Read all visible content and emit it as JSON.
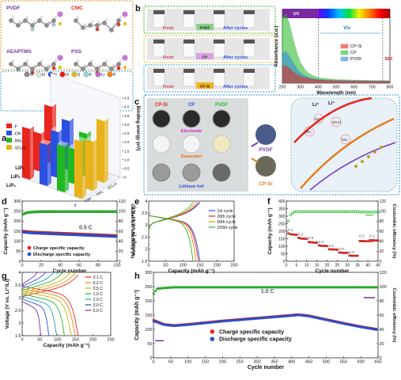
{
  "panel_letters": [
    "a",
    "b",
    "c",
    "d",
    "e",
    "f",
    "g",
    "h"
  ],
  "colors": {
    "red": "#e8251c",
    "blue": "#2b4fe0",
    "green": "#22b822",
    "navy": "#2b2b6e",
    "purple": "#7a2aa0",
    "orange": "#f08a16",
    "teal": "#1aa0b0"
  },
  "panel_a": {
    "molecules": [
      "PVDF",
      "CMC",
      "AEAPTMS",
      "PSS"
    ],
    "atom_legend": [
      "C",
      "H",
      "N",
      "O",
      "S",
      "F",
      "Li",
      "P"
    ],
    "bar3d": {
      "zlabel": "Binding energy (eV)",
      "zticks": [
        "0",
        "0.5",
        "1.0",
        "1.5",
        "2.0",
        "2.5",
        "3.0",
        "3.5",
        "4.0",
        "4.5"
      ],
      "legend": [
        "-F",
        "-OH",
        "-NH₂",
        "-SO₃H"
      ],
      "rows": [
        "LiP₆",
        "LiP₅",
        "LiP₃"
      ],
      "cols": [
        "-F",
        "-OH",
        "-NH₂",
        "-SO₃H"
      ]
    }
  },
  "panel_b": {
    "photo_labels": {
      "left": "Fresh",
      "right": "After cycles"
    },
    "row_tags": [
      "PVDF",
      "CP",
      "CP-Si"
    ],
    "chart_data": {
      "type": "line",
      "xlabel": "Wavelength (nm)",
      "ylabel": "Absorbance (a.u.)",
      "xlim": [
        200,
        800
      ],
      "xticks": [
        200,
        300,
        400,
        500,
        600,
        700,
        800
      ],
      "regions": {
        "uv": "UV",
        "vis": "Vis",
        "nir": "NIR"
      },
      "series": [
        {
          "name": "CP-Si",
          "color": "#e8251c",
          "x": [
            200,
            220,
            240,
            260,
            280,
            300,
            330,
            360,
            400,
            500,
            600,
            700,
            800
          ],
          "y": [
            0.55,
            0.6,
            0.5,
            0.38,
            0.3,
            0.24,
            0.18,
            0.14,
            0.1,
            0.08,
            0.07,
            0.06,
            0.06
          ]
        },
        {
          "name": "CP",
          "color": "#22b822",
          "x": [
            200,
            220,
            240,
            260,
            280,
            300,
            330,
            360,
            400,
            500,
            600,
            700,
            800
          ],
          "y": [
            2.2,
            2.35,
            2.0,
            1.5,
            1.05,
            0.7,
            0.42,
            0.28,
            0.18,
            0.12,
            0.1,
            0.09,
            0.08
          ]
        },
        {
          "name": "PVDF",
          "color": "#2b88e0",
          "x": [
            200,
            220,
            240,
            260,
            280,
            300,
            330,
            360,
            400,
            500,
            600,
            700,
            800
          ],
          "y": [
            1.0,
            1.08,
            0.9,
            0.68,
            0.5,
            0.36,
            0.24,
            0.17,
            0.12,
            0.09,
            0.08,
            0.07,
            0.07
          ]
        }
      ]
    }
  },
  "panel_c": {
    "binder_labels": [
      "CP-Si",
      "CP",
      "PVDF"
    ],
    "row_labels": [
      "Electrode",
      "Separator",
      "Lithium foil"
    ],
    "balls": [
      "PVDF",
      "CP-Si"
    ],
    "ions": [
      "Li⁺",
      "Li⁺"
    ],
    "groups": [
      "SO₃",
      "SO₃H",
      "NH₂",
      "SO₃"
    ]
  },
  "panel_d": {
    "chart_data": {
      "type": "line",
      "xlabel": "Cycle number",
      "ylabel": "Capacity (mAh g⁻¹)",
      "y2label": "Coulombic efficiency (%)",
      "xlim": [
        0,
        100
      ],
      "ylim": [
        0,
        300
      ],
      "y2lim": [
        0,
        120
      ],
      "xticks": [
        0,
        20,
        40,
        60,
        80,
        100
      ],
      "yticks": [
        0,
        50,
        100,
        150,
        200,
        250,
        300
      ],
      "y2ticks": [
        0,
        20,
        40,
        60,
        80,
        100,
        120
      ],
      "annotation": "0.5 C",
      "series": [
        {
          "name": "Charge specific capacity",
          "color": "#e8251c",
          "x": [
            1,
            5,
            10,
            20,
            30,
            40,
            50,
            60,
            70,
            80,
            90,
            100
          ],
          "y": [
            150,
            148,
            146,
            144,
            142,
            140,
            138,
            136,
            134,
            132,
            130,
            128
          ]
        },
        {
          "name": "Discharge specific capacity",
          "color": "#2b4fe0",
          "x": [
            1,
            5,
            10,
            20,
            30,
            40,
            50,
            60,
            70,
            80,
            90,
            100
          ],
          "y": [
            145,
            143,
            141,
            139,
            137,
            135,
            133,
            131,
            129,
            127,
            125,
            123
          ]
        },
        {
          "name": "Coulombic efficiency",
          "color": "#22b822",
          "x": [
            1,
            5,
            10,
            20,
            30,
            40,
            50,
            60,
            70,
            80,
            90,
            100
          ],
          "y": [
            94,
            97,
            98,
            99,
            99,
            99,
            99,
            99,
            99,
            99,
            99,
            99
          ]
        }
      ],
      "legend": [
        "Charge specific capacity",
        "Discharge specific capacity"
      ]
    }
  },
  "panel_e": {
    "chart_data": {
      "type": "line",
      "xlabel": "Capacity (mAh g⁻¹)",
      "ylabel": "Voltage (V vs. Li⁺/Li)",
      "xlim": [
        0,
        250
      ],
      "ylim": [
        1.5,
        4.0
      ],
      "xticks": [
        0,
        50,
        100,
        150,
        200,
        250
      ],
      "yticks": [
        1.5,
        2.0,
        2.5,
        3.0,
        3.5,
        4.0
      ],
      "legend": [
        "1st cycle",
        "20th cycle",
        "50th cycle",
        "100th cycle"
      ],
      "series": [
        {
          "name": "1st cycle",
          "color": "#2b4fe0",
          "cap": 150
        },
        {
          "name": "20th cycle",
          "color": "#e8251c",
          "cap": 146
        },
        {
          "name": "50th cycle",
          "color": "#f08a16",
          "cap": 139
        },
        {
          "name": "100th cycle",
          "color": "#22b822",
          "cap": 130
        }
      ]
    }
  },
  "panel_f": {
    "chart_data": {
      "type": "scatter",
      "xlabel": "Cycle number",
      "ylabel": "Capacity (mAh g⁻¹)",
      "y2label": "Coulombic efficiency (%)",
      "xlim": [
        0,
        45
      ],
      "ylim": [
        0,
        400
      ],
      "y2lim": [
        0,
        120
      ],
      "xticks": [
        0,
        5,
        10,
        15,
        20,
        25,
        30,
        35,
        40,
        45
      ],
      "yticks": [
        0,
        50,
        100,
        150,
        200,
        250,
        300,
        350,
        400
      ],
      "y2ticks": [
        0,
        20,
        40,
        60,
        80,
        100,
        120
      ],
      "rate_labels": [
        {
          "text": "0.1",
          "x": 2,
          "y": 200
        },
        {
          "text": "0.2",
          "x": 7,
          "y": 172
        },
        {
          "text": "0.5",
          "x": 12,
          "y": 148
        },
        {
          "text": "1.0",
          "x": 17,
          "y": 121
        },
        {
          "text": "2.0",
          "x": 22,
          "y": 96
        },
        {
          "text": "3.0",
          "x": 27,
          "y": 73
        },
        {
          "text": "5.0",
          "x": 32,
          "y": 53
        },
        {
          "text": "0.2",
          "x": 37,
          "y": 160
        },
        {
          "text": "0.1",
          "x": 42,
          "y": 160
        }
      ],
      "capacity": [
        185,
        180,
        178,
        177,
        176,
        155,
        152,
        150,
        150,
        149,
        128,
        126,
        125,
        124,
        124,
        105,
        103,
        102,
        102,
        101,
        80,
        79,
        78,
        78,
        77,
        58,
        57,
        56,
        56,
        56,
        38,
        37,
        36,
        36,
        36,
        135,
        134,
        134,
        133,
        133,
        140,
        139,
        139,
        138,
        138
      ],
      "efficiency": [
        80,
        92,
        96,
        98,
        99,
        99,
        99,
        99,
        99,
        99,
        99,
        99,
        99,
        99,
        99,
        99,
        99,
        99,
        99,
        99,
        99,
        99,
        99,
        99,
        99,
        99,
        99,
        99,
        99,
        99,
        99,
        99,
        99,
        99,
        99,
        98,
        98,
        98,
        98,
        98,
        98,
        98,
        98,
        98,
        98
      ]
    }
  },
  "panel_g": {
    "chart_data": {
      "type": "line",
      "xlabel": "Capacity (mAh g⁻¹)",
      "ylabel": "Voltage (V vs. Li⁺/Li)",
      "xlim": [
        0,
        250
      ],
      "ylim": [
        1.5,
        4.0
      ],
      "xticks": [
        0,
        50,
        100,
        150,
        200,
        250
      ],
      "yticks": [
        1.5,
        2.0,
        2.5,
        3.0,
        3.5,
        4.0
      ],
      "legend": [
        "0.1 C",
        "0.2 C",
        "0.5 C",
        "1.0 C",
        "2.0 C",
        "3.0 C",
        "5.0 C"
      ],
      "series": [
        {
          "name": "0.1 C",
          "color": "#e8251c",
          "cap": 158
        },
        {
          "name": "0.2 C",
          "color": "#f08a16",
          "cap": 150
        },
        {
          "name": "0.5 C",
          "color": "#c8b400",
          "cap": 140
        },
        {
          "name": "1.0 C",
          "color": "#22b822",
          "cap": 122
        },
        {
          "name": "2.0 C",
          "color": "#1aa0b0",
          "cap": 100
        },
        {
          "name": "3.0 C",
          "color": "#2b4fe0",
          "cap": 78
        },
        {
          "name": "5.0 C",
          "color": "#7a2aa0",
          "cap": 55
        }
      ]
    }
  },
  "panel_h": {
    "chart_data": {
      "type": "line",
      "xlabel": "Cycle number",
      "ylabel": "Capacity (mAh g⁻¹)",
      "y2label": "Coulombic efficiency (%)",
      "xlim": [
        0,
        650
      ],
      "ylim": [
        0,
        300
      ],
      "y2lim": [
        0,
        120
      ],
      "xticks": [
        0,
        50,
        100,
        150,
        200,
        250,
        300,
        350,
        400,
        450,
        500,
        550,
        600,
        650
      ],
      "yticks": [
        0,
        50,
        100,
        150,
        200,
        250,
        300
      ],
      "y2ticks": [
        0,
        20,
        40,
        60,
        80,
        100,
        120
      ],
      "annotation": "1.0 C",
      "legend": [
        "Charge specific capacity",
        "Discharge specific capacity"
      ],
      "series": [
        {
          "name": "Charge specific capacity",
          "color": "#e8251c",
          "x": [
            1,
            10,
            30,
            60,
            100,
            150,
            200,
            250,
            300,
            350,
            400,
            420,
            450,
            500,
            550,
            600,
            650
          ],
          "y": [
            132,
            128,
            118,
            114,
            118,
            124,
            130,
            135,
            140,
            145,
            150,
            152,
            148,
            135,
            122,
            110,
            100
          ]
        },
        {
          "name": "Discharge specific capacity",
          "color": "#2b4fe0",
          "x": [
            1,
            10,
            30,
            60,
            100,
            150,
            200,
            250,
            300,
            350,
            400,
            420,
            450,
            500,
            550,
            600,
            650
          ],
          "y": [
            128,
            125,
            116,
            112,
            116,
            122,
            128,
            133,
            138,
            143,
            148,
            150,
            146,
            133,
            120,
            108,
            98
          ]
        },
        {
          "name": "Coulombic efficiency",
          "color": "#22b822",
          "x": [
            1,
            10,
            30,
            60,
            100,
            150,
            200,
            250,
            300,
            350,
            400,
            450,
            500,
            550,
            600,
            650
          ],
          "y": [
            90,
            97,
            98,
            99,
            99,
            99,
            99,
            99,
            99,
            99,
            99,
            99,
            99,
            99,
            99,
            99
          ]
        }
      ]
    }
  }
}
